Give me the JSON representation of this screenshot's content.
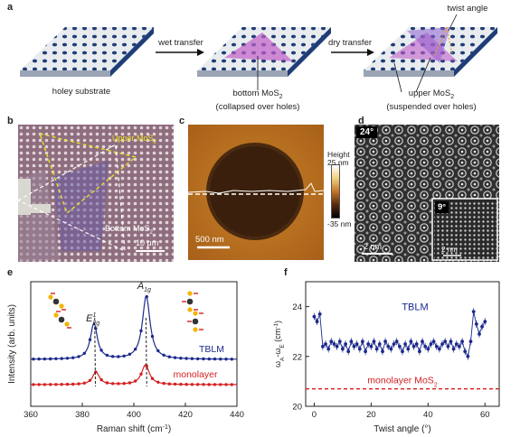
{
  "panel_labels": {
    "a": "a",
    "b": "b",
    "c": "c",
    "d": "d",
    "e": "e",
    "f": "f"
  },
  "panel_a": {
    "arrow1": "wet transfer",
    "arrow2": "dry transfer",
    "caption1": "holey substrate",
    "caption2_line1": "bottom MoS",
    "caption2_sub": "2",
    "caption2_line2": "(collapsed over holes)",
    "caption3_line1": "upper MoS",
    "caption3_sub": "2",
    "caption3_line2": "(suspended over holes)",
    "twist_label": "twist angle",
    "colors": {
      "substrate_top": "#e9ecef",
      "substrate_side": "#1f3d77",
      "mos2": "#c060c8"
    }
  },
  "panel_b": {
    "upper_label": "Upper MoS",
    "upper_sub": "2",
    "bottom_label": "Bottom MoS",
    "bottom_sub": "2",
    "scale": "10 μm"
  },
  "panel_c": {
    "scale": "500 nm",
    "colorbar_title": "Height",
    "colorbar_max": "25 nm",
    "colorbar_min": "-35 nm"
  },
  "panel_d": {
    "angle_main": "24°",
    "angle_inset": "9°",
    "scale_main": "2 nm",
    "scale_inset": "2 nm"
  },
  "chart_data": [
    {
      "type": "line",
      "xlabel": "Raman shift (cm",
      "xlabel_sup": "-1",
      "xlabel_end": ")",
      "ylabel": "Intensity (arb. units)",
      "xlim": [
        360,
        440
      ],
      "xticks": [
        "360",
        "380",
        "400",
        "420",
        "440"
      ],
      "peak_labels": {
        "e2g": "E",
        "e2g_sup": "1",
        "e2g_sub": "2g",
        "a1g": "A",
        "a1g_sub": "1g"
      },
      "series": [
        {
          "name": "TBLM",
          "color": "#1c2a8c",
          "peaks": [
            384.5,
            404.8
          ]
        },
        {
          "name": "monolayer",
          "color": "#d42020",
          "peaks": [
            385.3,
            404.5
          ]
        }
      ]
    },
    {
      "type": "scatter",
      "xlabel": "Twist angle (°)",
      "ylabel": "ω",
      "ylabel_a": "A",
      "ylabel_mid": "-ω",
      "ylabel_e": "E",
      "ylabel_unit": " (cm",
      "ylabel_unit_sup": "-1",
      "ylabel_end": ")",
      "xlim": [
        -3,
        65
      ],
      "ylim": [
        20,
        25
      ],
      "xticks": [
        "0",
        "20",
        "40",
        "60"
      ],
      "yticks": [
        "20",
        "22",
        "24"
      ],
      "series": [
        {
          "name": "TBLM",
          "color": "#1c2a8c",
          "x": [
            0,
            1,
            2,
            3,
            4,
            5,
            6,
            7,
            8,
            9,
            10,
            11,
            12,
            13,
            14,
            15,
            16,
            17,
            18,
            19,
            20,
            21,
            22,
            23,
            24,
            25,
            26,
            27,
            28,
            29,
            30,
            31,
            32,
            33,
            34,
            35,
            36,
            37,
            38,
            39,
            40,
            41,
            42,
            43,
            44,
            45,
            46,
            47,
            48,
            49,
            50,
            51,
            52,
            53,
            54,
            55,
            56,
            57,
            58,
            59,
            60
          ],
          "y": [
            23.6,
            23.4,
            23.7,
            22.4,
            22.5,
            22.3,
            22.6,
            22.5,
            22.4,
            22.6,
            22.3,
            22.5,
            22.2,
            22.6,
            22.4,
            22.5,
            22.3,
            22.6,
            22.2,
            22.5,
            22.4,
            22.6,
            22.3,
            22.5,
            22.2,
            22.6,
            22.4,
            22.3,
            22.5,
            22.6,
            22.4,
            22.2,
            22.5,
            22.3,
            22.6,
            22.4,
            22.5,
            22.2,
            22.6,
            22.4,
            22.3,
            22.5,
            22.6,
            22.4,
            22.3,
            22.5,
            22.6,
            22.4,
            22.6,
            22.3,
            22.5,
            22.4,
            22.6,
            22.2,
            22.0,
            22.6,
            23.8,
            23.3,
            22.9,
            23.2,
            23.4
          ]
        },
        {
          "name": "monolayer MoS",
          "name_sub": "2",
          "color": "#d42020",
          "constant": 20.7
        }
      ],
      "legend_tblm": "TBLM",
      "monolayer_label": "monolayer MoS",
      "monolayer_sub": "2"
    }
  ]
}
